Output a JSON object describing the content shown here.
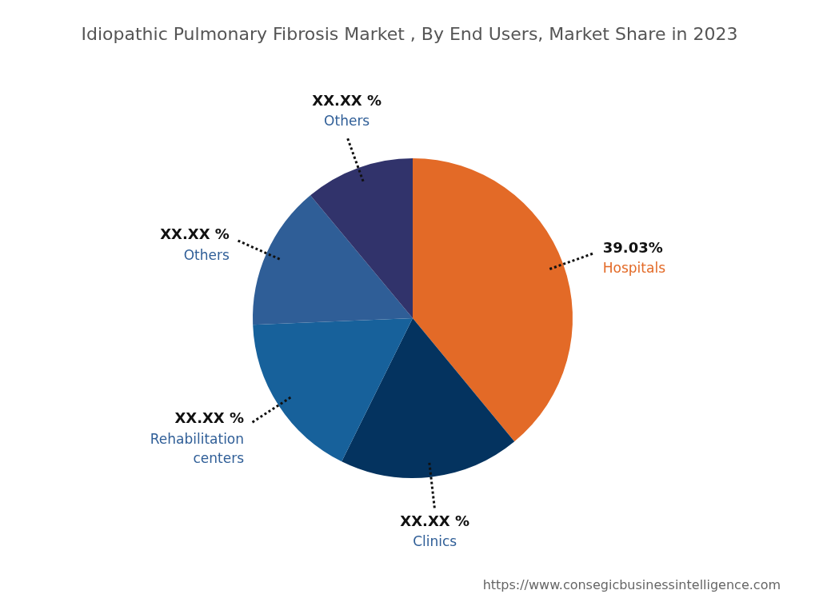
{
  "chart_data": {
    "type": "pie",
    "title": "Idiopathic Pulmonary Fibrosis Market , By End Users, Market Share in 2023",
    "annotation": "https://www.consegicbusinessintelligence.com",
    "categories": [
      "Hospitals",
      "Clinics",
      "Rehabilitation centers",
      "Others",
      "Others"
    ],
    "values": [
      39.03,
      18.29,
      17.03,
      14.6,
      11.05
    ],
    "value_labels": [
      "39.03%",
      "XX.XX %",
      "XX.XX %",
      "XX.XX %",
      "XX.XX %"
    ],
    "colors": [
      "#e36a27",
      "#04335f",
      "#17619b",
      "#2f5e97",
      "#31336b"
    ],
    "data_labels": true,
    "legend": false
  }
}
